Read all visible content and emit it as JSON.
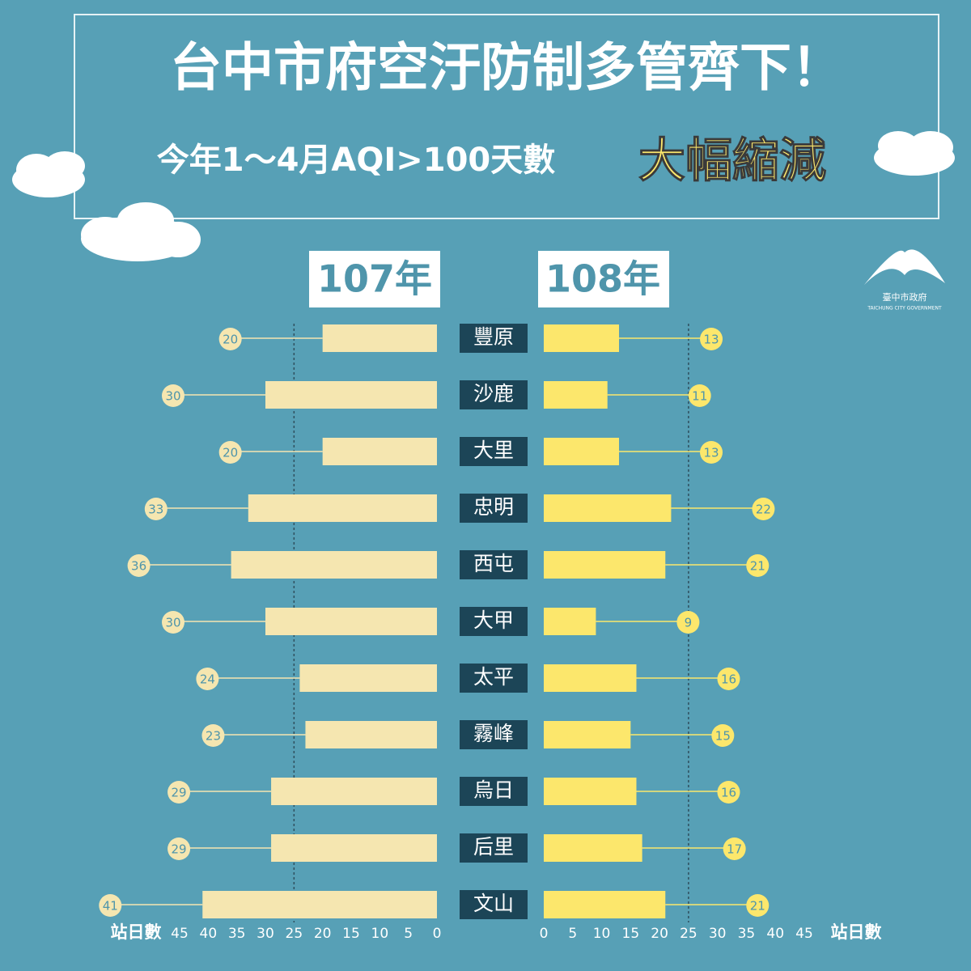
{
  "chart_data": {
    "type": "butterfly",
    "title": "台中市府空汙防制多管齊下！",
    "subtitle": "今年1～4月AQI>100天數",
    "highlight": "大幅縮減",
    "categories": [
      "豐原",
      "沙鹿",
      "大里",
      "忠明",
      "西屯",
      "大甲",
      "太平",
      "霧峰",
      "烏日",
      "后里",
      "文山"
    ],
    "series": [
      {
        "name": "107年",
        "color": "#f5e6b0",
        "values": [
          20,
          30,
          20,
          33,
          36,
          30,
          24,
          23,
          29,
          29,
          41
        ]
      },
      {
        "name": "108年",
        "color": "#fce76c",
        "values": [
          13,
          11,
          13,
          22,
          21,
          9,
          16,
          15,
          16,
          17,
          21
        ]
      }
    ],
    "xlabel": "站日數",
    "xlim": [
      0,
      45
    ],
    "xticks": [
      0,
      5,
      10,
      15,
      20,
      25,
      30,
      35,
      40,
      45
    ],
    "reference_line": 25,
    "logo": {
      "name": "臺中市政府",
      "subtitle": "TAICHUNG CITY GOVERNMENT"
    }
  }
}
